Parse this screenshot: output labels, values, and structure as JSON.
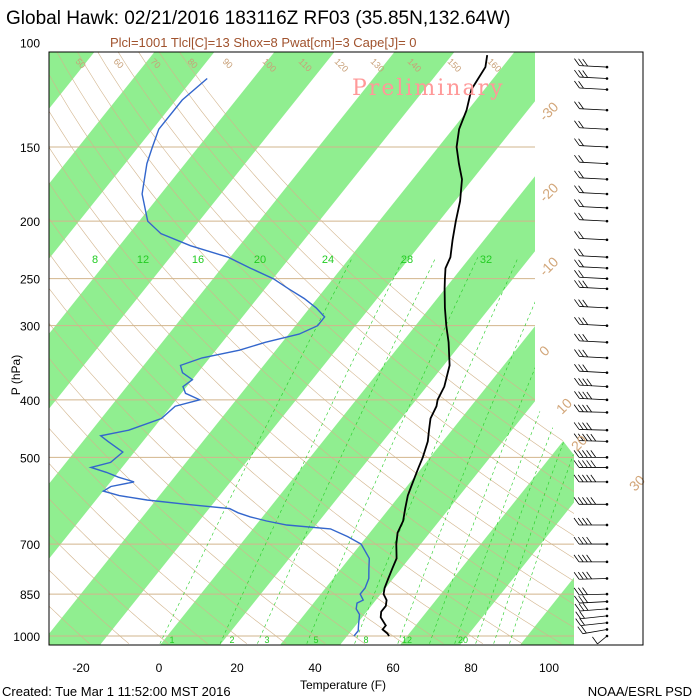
{
  "title": "Global Hawk: 02/21/2016 183116Z RF03 (35.85N,132.64W)",
  "subtitle": "Plcl=1001 Tlcl[C]=13 Shox=8 Pwat[cm]=3 Cape[J]= 0",
  "watermark": "Preliminary",
  "footer_left": "Created: Tue Mar  1 11:52:00 MST 2016",
  "footer_right": "NOAA/ESRL PSD",
  "colors": {
    "temperature": "#000000",
    "dewpoint": "#3366cc",
    "band": "#90ee90",
    "isobar": "#d2b48c",
    "adiabat": "#d2b48c",
    "mixing_ratio": "#22cc22",
    "watermark": "#ff9999"
  },
  "chart_data": {
    "type": "line",
    "title": "Global Hawk: 02/21/2016 183116Z RF03 (35.85N,132.64W)",
    "xlabel": "Temperature (F)",
    "ylabel": "P (hPa)",
    "xlim": [
      -28,
      118
    ],
    "ylim": [
      1030,
      100
    ],
    "y_scale": "log",
    "x_ticks": [
      -20,
      0,
      20,
      40,
      60,
      80,
      100
    ],
    "y_ticks": [
      100,
      150,
      200,
      250,
      300,
      400,
      500,
      700,
      850,
      1000
    ],
    "mixing_ratio_labels": [
      "8",
      "12",
      "16",
      "20",
      "24",
      "28",
      "32"
    ],
    "mixing_ratio_bottom_labels": [
      "1",
      "2",
      "3",
      "5",
      "8",
      "12",
      "20"
    ],
    "skewed_isotherm_labels": [
      "-30",
      "-20",
      "-10",
      "0",
      "10",
      "20",
      "30"
    ],
    "adiabat_labels": [
      "50",
      "60",
      "70",
      "80",
      "90",
      "100",
      "110",
      "120",
      "130",
      "140",
      "150",
      "160"
    ],
    "series": [
      {
        "name": "Temperature",
        "points": [
          [
            1000,
            59
          ],
          [
            990,
            58
          ],
          [
            975,
            56
          ],
          [
            960,
            56
          ],
          [
            950,
            55
          ],
          [
            930,
            53
          ],
          [
            910,
            52
          ],
          [
            890,
            52
          ],
          [
            870,
            51
          ],
          [
            850,
            49
          ],
          [
            830,
            48
          ],
          [
            800,
            47
          ],
          [
            770,
            46
          ],
          [
            740,
            45
          ],
          [
            700,
            42
          ],
          [
            670,
            40
          ],
          [
            640,
            39
          ],
          [
            610,
            37
          ],
          [
            580,
            35
          ],
          [
            560,
            34
          ],
          [
            540,
            33
          ],
          [
            520,
            32
          ],
          [
            500,
            31
          ],
          [
            470,
            29
          ],
          [
            450,
            27
          ],
          [
            430,
            25
          ],
          [
            410,
            24
          ],
          [
            400,
            23
          ],
          [
            380,
            22
          ],
          [
            350,
            19
          ],
          [
            320,
            14
          ],
          [
            300,
            10
          ],
          [
            280,
            6
          ],
          [
            260,
            2
          ],
          [
            250,
            0
          ],
          [
            240,
            -2
          ],
          [
            230,
            -3
          ],
          [
            215,
            -6
          ],
          [
            200,
            -9
          ],
          [
            185,
            -12
          ],
          [
            170,
            -16
          ],
          [
            160,
            -20
          ],
          [
            150,
            -24
          ],
          [
            140,
            -27
          ],
          [
            130,
            -29
          ],
          [
            120,
            -32
          ],
          [
            110,
            -33
          ],
          [
            105,
            -35
          ]
        ]
      },
      {
        "name": "Dewpoint",
        "points": [
          [
            1000,
            50
          ],
          [
            980,
            50
          ],
          [
            960,
            49
          ],
          [
            940,
            48
          ],
          [
            920,
            47
          ],
          [
            900,
            45
          ],
          [
            880,
            44
          ],
          [
            870,
            45
          ],
          [
            860,
            44
          ],
          [
            850,
            43
          ],
          [
            830,
            43
          ],
          [
            800,
            42
          ],
          [
            770,
            40
          ],
          [
            740,
            38
          ],
          [
            700,
            33
          ],
          [
            680,
            28
          ],
          [
            660,
            22
          ],
          [
            650,
            10
          ],
          [
            640,
            4
          ],
          [
            630,
            -1
          ],
          [
            620,
            -5
          ],
          [
            610,
            -8
          ],
          [
            600,
            -20
          ],
          [
            590,
            -31
          ],
          [
            580,
            -39
          ],
          [
            570,
            -44
          ],
          [
            560,
            -43
          ],
          [
            550,
            -38
          ],
          [
            540,
            -43
          ],
          [
            530,
            -47
          ],
          [
            520,
            -52
          ],
          [
            510,
            -48
          ],
          [
            490,
            -47
          ],
          [
            470,
            -53
          ],
          [
            460,
            -56
          ],
          [
            450,
            -50
          ],
          [
            430,
            -44
          ],
          [
            410,
            -43
          ],
          [
            400,
            -38
          ],
          [
            390,
            -43
          ],
          [
            380,
            -45
          ],
          [
            370,
            -44
          ],
          [
            360,
            -48
          ],
          [
            350,
            -50
          ],
          [
            340,
            -46
          ],
          [
            330,
            -38
          ],
          [
            320,
            -33
          ],
          [
            310,
            -26
          ],
          [
            300,
            -23
          ],
          [
            290,
            -23
          ],
          [
            280,
            -27
          ],
          [
            270,
            -32
          ],
          [
            260,
            -38
          ],
          [
            250,
            -44
          ],
          [
            240,
            -52
          ],
          [
            230,
            -60
          ],
          [
            220,
            -72
          ],
          [
            210,
            -82
          ],
          [
            200,
            -88
          ],
          [
            180,
            -95
          ],
          [
            160,
            -100
          ],
          [
            150,
            -102
          ],
          [
            140,
            -104
          ],
          [
            125,
            -104
          ],
          [
            115,
            -102
          ]
        ]
      }
    ],
    "wind_barbs": [
      {
        "p": 1000,
        "speed": 5,
        "dir": 200
      },
      {
        "p": 975,
        "speed": 15,
        "dir": 240
      },
      {
        "p": 950,
        "speed": 20,
        "dir": 250
      },
      {
        "p": 925,
        "speed": 20,
        "dir": 250
      },
      {
        "p": 900,
        "speed": 25,
        "dir": 255
      },
      {
        "p": 875,
        "speed": 25,
        "dir": 260
      },
      {
        "p": 850,
        "speed": 30,
        "dir": 265
      },
      {
        "p": 800,
        "speed": 35,
        "dir": 265
      },
      {
        "p": 750,
        "speed": 35,
        "dir": 270
      },
      {
        "p": 700,
        "speed": 40,
        "dir": 270
      },
      {
        "p": 650,
        "speed": 40,
        "dir": 270
      },
      {
        "p": 600,
        "speed": 45,
        "dir": 270
      },
      {
        "p": 550,
        "speed": 45,
        "dir": 270
      },
      {
        "p": 520,
        "speed": 50,
        "dir": 270
      },
      {
        "p": 500,
        "speed": 50,
        "dir": 270
      },
      {
        "p": 470,
        "speed": 45,
        "dir": 275
      },
      {
        "p": 450,
        "speed": 40,
        "dir": 275
      },
      {
        "p": 420,
        "speed": 40,
        "dir": 275
      },
      {
        "p": 400,
        "speed": 35,
        "dir": 280
      },
      {
        "p": 380,
        "speed": 35,
        "dir": 280
      },
      {
        "p": 360,
        "speed": 30,
        "dir": 280
      },
      {
        "p": 340,
        "speed": 30,
        "dir": 280
      },
      {
        "p": 320,
        "speed": 25,
        "dir": 280
      },
      {
        "p": 300,
        "speed": 25,
        "dir": 280
      },
      {
        "p": 280,
        "speed": 25,
        "dir": 280
      },
      {
        "p": 260,
        "speed": 25,
        "dir": 280
      },
      {
        "p": 250,
        "speed": 20,
        "dir": 280
      },
      {
        "p": 240,
        "speed": 20,
        "dir": 280
      },
      {
        "p": 230,
        "speed": 20,
        "dir": 280
      },
      {
        "p": 215,
        "speed": 20,
        "dir": 280
      },
      {
        "p": 200,
        "speed": 15,
        "dir": 280
      },
      {
        "p": 190,
        "speed": 15,
        "dir": 280
      },
      {
        "p": 180,
        "speed": 15,
        "dir": 280
      },
      {
        "p": 170,
        "speed": 20,
        "dir": 280
      },
      {
        "p": 160,
        "speed": 20,
        "dir": 280
      },
      {
        "p": 150,
        "speed": 15,
        "dir": 280
      },
      {
        "p": 140,
        "speed": 20,
        "dir": 280
      },
      {
        "p": 130,
        "speed": 20,
        "dir": 280
      },
      {
        "p": 120,
        "speed": 20,
        "dir": 280
      },
      {
        "p": 115,
        "speed": 25,
        "dir": 280
      },
      {
        "p": 110,
        "speed": 25,
        "dir": 280
      }
    ]
  }
}
